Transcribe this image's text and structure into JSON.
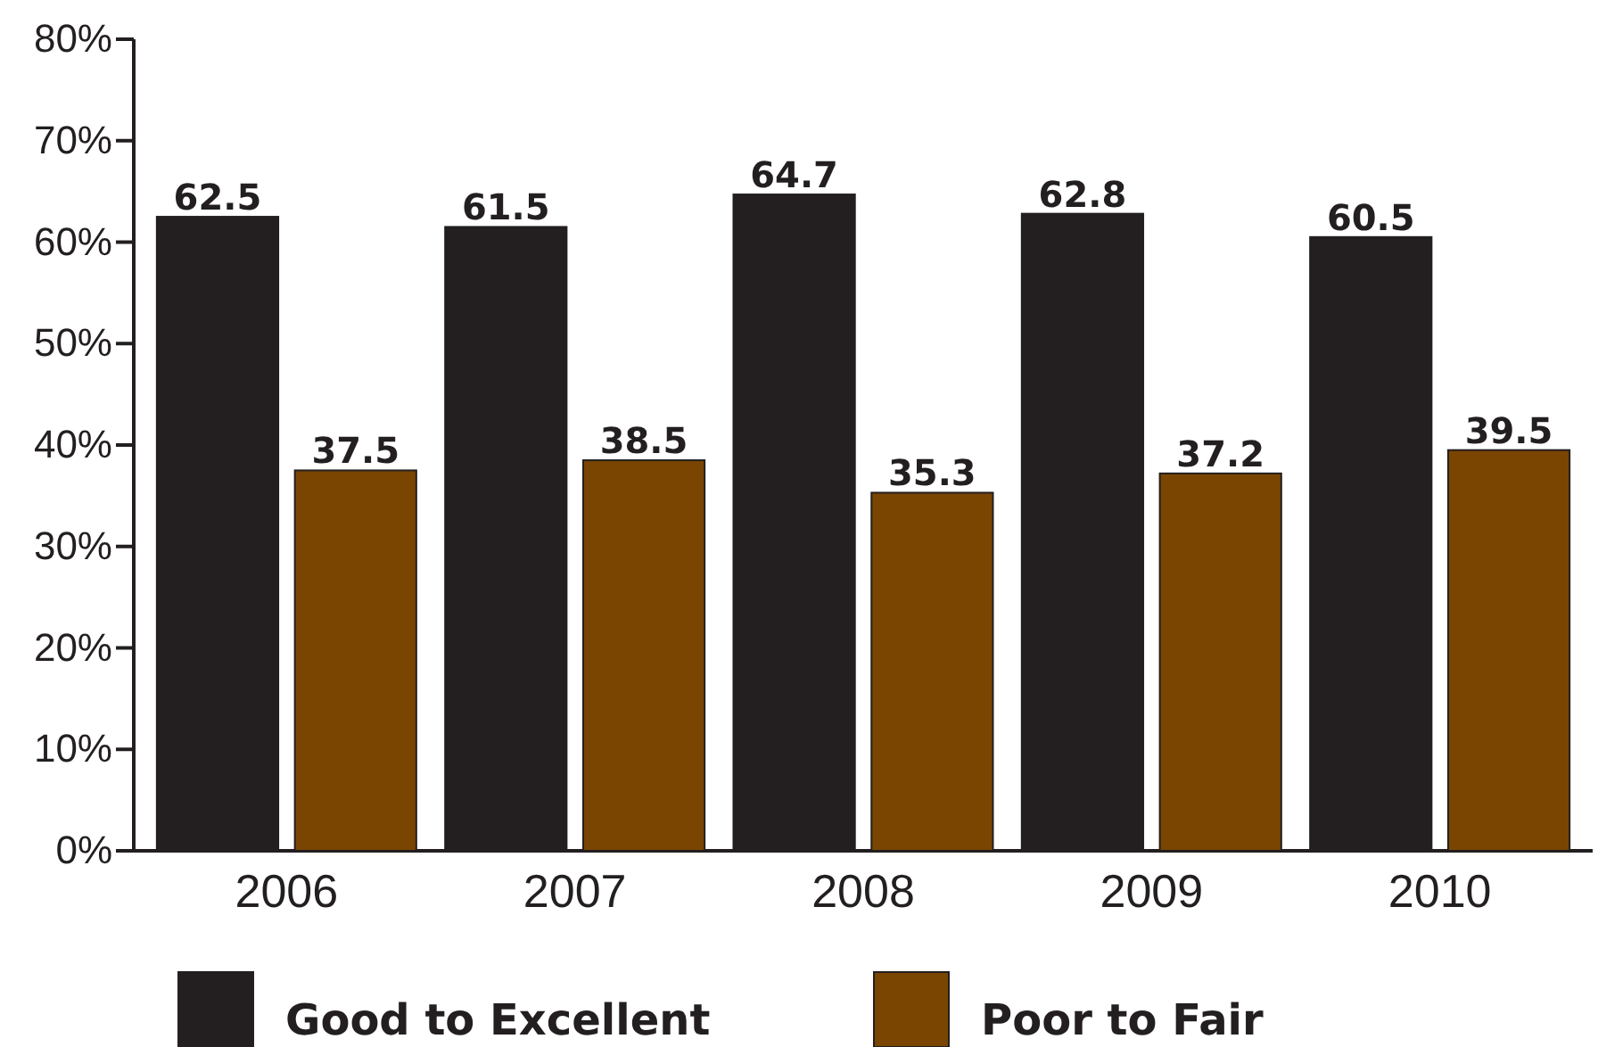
{
  "chart_data": {
    "type": "bar",
    "categories": [
      "2006",
      "2007",
      "2008",
      "2009",
      "2010"
    ],
    "series": [
      {
        "name": "Good to Excellent",
        "color": "#231f20",
        "values": [
          62.5,
          61.5,
          64.7,
          62.8,
          60.5
        ]
      },
      {
        "name": "Poor to Fair",
        "color": "#7a4500",
        "values": [
          37.5,
          38.5,
          35.3,
          37.2,
          39.5
        ]
      }
    ],
    "ylim": [
      0,
      80
    ],
    "yticks": [
      {
        "value": 0,
        "label": "0%"
      },
      {
        "value": 10,
        "label": "10%"
      },
      {
        "value": 20,
        "label": "20%"
      },
      {
        "value": 30,
        "label": "30%"
      },
      {
        "value": 40,
        "label": "40%"
      },
      {
        "value": 50,
        "label": "50%"
      },
      {
        "value": 60,
        "label": "60%"
      },
      {
        "value": 70,
        "label": "70%"
      },
      {
        "value": 80,
        "label": "80%"
      }
    ],
    "data_labels": true,
    "legend": "bottom",
    "grid": false
  }
}
